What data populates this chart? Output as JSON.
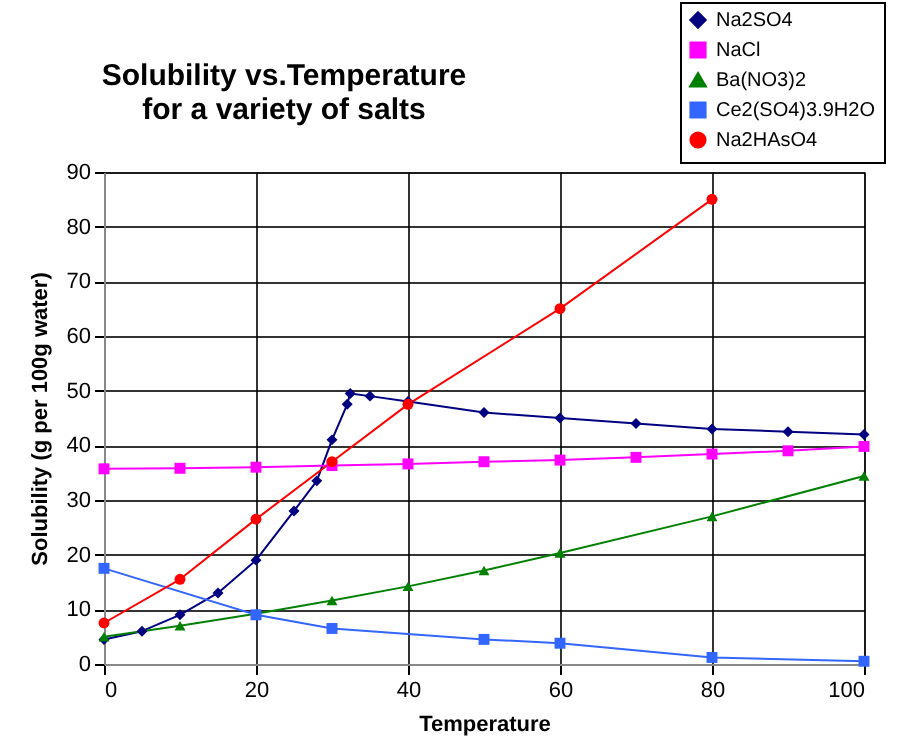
{
  "chart_data": {
    "type": "line",
    "title": "Solubility vs.Temperature\nfor a variety of salts",
    "xlabel": "Temperature",
    "ylabel": "Solubility (g per 100g water)",
    "xlim": [
      0,
      100
    ],
    "xticks": [
      0,
      20,
      40,
      60,
      80,
      100
    ],
    "ylim": [
      0,
      90
    ],
    "yticks": [
      0,
      10,
      20,
      30,
      40,
      50,
      60,
      70,
      80,
      90
    ],
    "grid": true,
    "legend": "top right",
    "series": [
      {
        "name": "Na2SO4",
        "color": "#000080",
        "marker": "diamond",
        "x": [
          0,
          5,
          10,
          15,
          20,
          25,
          28,
          30,
          32,
          32.4,
          35,
          40,
          50,
          60,
          70,
          80,
          90,
          100
        ],
        "values": [
          4.5,
          6,
          9,
          13,
          19,
          28,
          33.5,
          41,
          47.5,
          49.5,
          49,
          48,
          46,
          45,
          44,
          43,
          42.5,
          42
        ]
      },
      {
        "name": "NaCl",
        "color": "#ff00ff",
        "marker": "square",
        "x": [
          0,
          10,
          20,
          30,
          40,
          50,
          60,
          70,
          80,
          90,
          100
        ],
        "values": [
          35.7,
          35.8,
          36,
          36.3,
          36.6,
          37,
          37.3,
          37.8,
          38.4,
          39,
          39.8
        ]
      },
      {
        "name": "Ba(NO3)2",
        "color": "#008000",
        "marker": "triangle",
        "x": [
          0,
          10,
          20,
          30,
          40,
          50,
          60,
          80,
          100
        ],
        "values": [
          5,
          7,
          9.2,
          11.6,
          14.2,
          17.1,
          20.3,
          27,
          34.4
        ]
      },
      {
        "name": " Ce2(SO4)3.9H2O",
        "color": "#3366ff",
        "marker": "square",
        "x": [
          0,
          20,
          30,
          50,
          60,
          80,
          100
        ],
        "values": [
          17.5,
          9,
          6.5,
          4.5,
          3.8,
          1.2,
          0.5
        ]
      },
      {
        "name": "Na2HAsO4",
        "color": "#ff0000",
        "marker": "circle",
        "x": [
          0,
          10,
          20,
          30,
          40,
          60,
          80
        ],
        "values": [
          7.5,
          15.5,
          26.5,
          37,
          47.5,
          65,
          85
        ]
      }
    ]
  }
}
